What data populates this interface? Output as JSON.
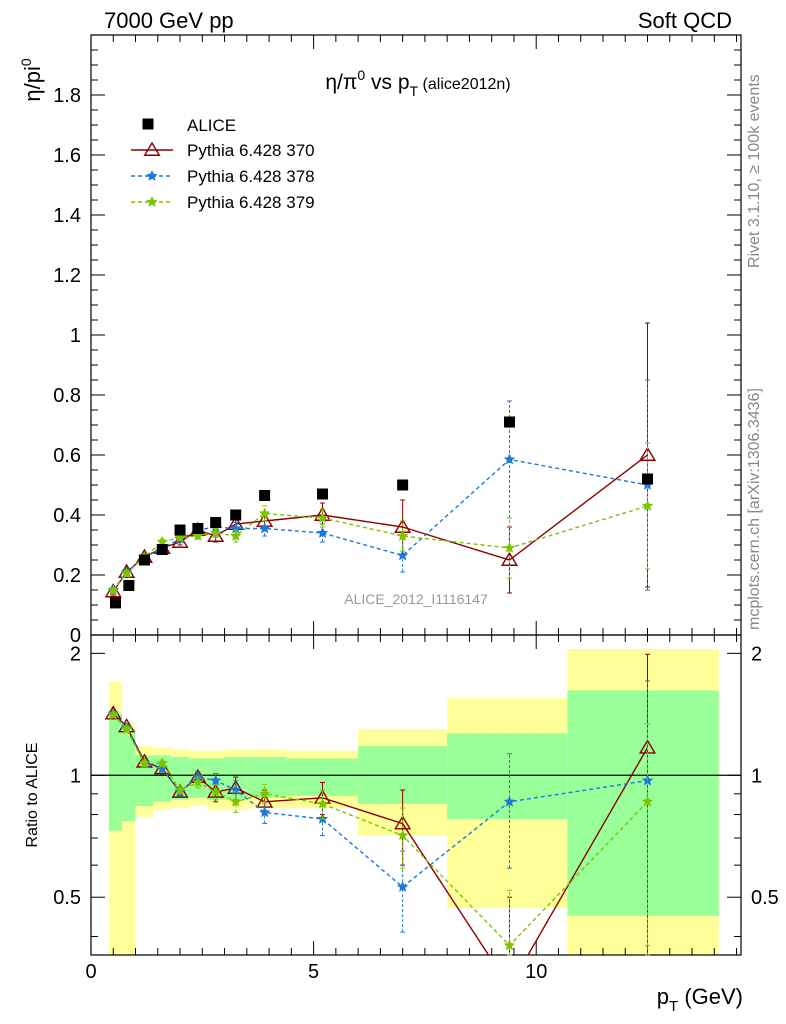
{
  "header": {
    "left": "7000 GeV pp",
    "right": "Soft QCD",
    "side_top": "Rivet 3.1.10, ≥ 100k events",
    "side_bottom": "mcplots.cern.ch [arXiv:1306.3436]",
    "watermark": "ALICE_2012_I1116147"
  },
  "chart_data": [
    {
      "type": "line",
      "title": "η/π⁰ vs p_T (alice2012n)",
      "title_main": "η/π",
      "title_sup": "0",
      "title_mid": " vs p",
      "title_sub": "T",
      "title_tag": "(alice2012n)",
      "ylabel_main": "η/pi",
      "ylabel_sup": "0",
      "xlim": [
        0,
        14.6
      ],
      "ylim": [
        0,
        2.0
      ],
      "yticks": [
        0,
        0.2,
        0.4,
        0.6,
        0.8,
        1,
        1.2,
        1.4,
        1.6,
        1.8
      ],
      "ytick_labels": [
        "0",
        "0.2",
        "0.4",
        "0.6",
        "0.8",
        "1",
        "1.2",
        "1.4",
        "1.6",
        "1.8"
      ],
      "legend_position": "top-left",
      "data": {
        "name": "ALICE",
        "color": "#000000",
        "x": [
          0.55,
          0.85,
          1.2,
          1.6,
          2.0,
          2.4,
          2.8,
          3.25,
          3.9,
          5.2,
          7.0,
          9.4,
          12.5
        ],
        "y": [
          0.107,
          0.165,
          0.25,
          0.285,
          0.35,
          0.355,
          0.375,
          0.4,
          0.465,
          0.47,
          0.5,
          0.71,
          0.52
        ]
      },
      "series": [
        {
          "name": "Pythia 6.428 370",
          "color": "#8b0000",
          "marker": "triangle",
          "dash": "solid",
          "x": [
            0.5,
            0.8,
            1.2,
            1.6,
            2.0,
            2.4,
            2.8,
            3.25,
            3.9,
            5.2,
            7.0,
            9.4,
            12.5
          ],
          "y": [
            0.145,
            0.21,
            0.26,
            0.29,
            0.31,
            0.35,
            0.33,
            0.37,
            0.38,
            0.4,
            0.36,
            0.25,
            0.6
          ],
          "err": [
            0.012,
            0.012,
            0.01,
            0.01,
            0.01,
            0.012,
            0.02,
            0.02,
            0.03,
            0.04,
            0.09,
            0.11,
            0.44
          ]
        },
        {
          "name": "Pythia 6.428 378",
          "color": "#1e78d8",
          "marker": "star",
          "dash": "dashed",
          "x": [
            0.5,
            0.8,
            1.2,
            1.6,
            2.0,
            2.4,
            2.8,
            3.25,
            3.9,
            5.2,
            7.0,
            9.4,
            12.5
          ],
          "y": [
            0.15,
            0.21,
            0.26,
            0.29,
            0.32,
            0.35,
            0.36,
            0.355,
            0.355,
            0.34,
            0.265,
            0.585,
            0.5
          ],
          "err": [
            0.01,
            0.01,
            0.01,
            0.01,
            0.01,
            0.01,
            0.015,
            0.02,
            0.025,
            0.03,
            0.055,
            0.195,
            0.35
          ]
        },
        {
          "name": "Pythia 6.428 379",
          "color": "#7cc400",
          "marker": "star",
          "dash": "dashed",
          "x": [
            0.5,
            0.8,
            1.2,
            1.6,
            2.0,
            2.4,
            2.8,
            3.25,
            3.9,
            5.2,
            7.0,
            9.4,
            12.5
          ],
          "y": [
            0.148,
            0.205,
            0.26,
            0.31,
            0.325,
            0.33,
            0.34,
            0.33,
            0.405,
            0.39,
            0.33,
            0.29,
            0.43
          ],
          "err": [
            0.01,
            0.01,
            0.01,
            0.01,
            0.01,
            0.01,
            0.015,
            0.02,
            0.025,
            0.03,
            0.05,
            0.1,
            0.21
          ]
        }
      ]
    },
    {
      "type": "line",
      "ylabel": "Ratio to ALICE",
      "xlabel_main": "p",
      "xlabel_sub": "T",
      "xlabel_unit": "(GeV)",
      "xlim": [
        0,
        14.6
      ],
      "ylim": [
        0.36,
        2.22
      ],
      "xticks": [
        0,
        5,
        10
      ],
      "xtick_labels": [
        "0",
        "5",
        "10"
      ],
      "yticks": [
        0.5,
        1,
        2
      ],
      "ytick_labels": [
        "0.5",
        "1",
        "2"
      ],
      "bands": [
        {
          "x0": 0.4,
          "x1": 0.7,
          "green": [
            0.73,
            1.42
          ],
          "yellow": [
            0.36,
            1.7
          ]
        },
        {
          "x0": 0.7,
          "x1": 1.0,
          "green": [
            0.77,
            1.3
          ],
          "yellow": [
            0.36,
            1.35
          ]
        },
        {
          "x0": 1.0,
          "x1": 1.4,
          "green": [
            0.84,
            1.12
          ],
          "yellow": [
            0.79,
            1.18
          ]
        },
        {
          "x0": 1.4,
          "x1": 1.8,
          "green": [
            0.86,
            1.12
          ],
          "yellow": [
            0.82,
            1.17
          ]
        },
        {
          "x0": 1.8,
          "x1": 2.2,
          "green": [
            0.87,
            1.11
          ],
          "yellow": [
            0.83,
            1.16
          ]
        },
        {
          "x0": 2.2,
          "x1": 2.6,
          "green": [
            0.88,
            1.1
          ],
          "yellow": [
            0.84,
            1.15
          ]
        },
        {
          "x0": 2.6,
          "x1": 3.0,
          "green": [
            0.87,
            1.1
          ],
          "yellow": [
            0.82,
            1.15
          ]
        },
        {
          "x0": 3.0,
          "x1": 3.5,
          "green": [
            0.87,
            1.11
          ],
          "yellow": [
            0.82,
            1.16
          ]
        },
        {
          "x0": 3.5,
          "x1": 4.4,
          "green": [
            0.88,
            1.11
          ],
          "yellow": [
            0.83,
            1.16
          ]
        },
        {
          "x0": 4.4,
          "x1": 6.0,
          "green": [
            0.89,
            1.1
          ],
          "yellow": [
            0.83,
            1.15
          ]
        },
        {
          "x0": 6.0,
          "x1": 8.0,
          "green": [
            0.85,
            1.18
          ],
          "yellow": [
            0.71,
            1.3
          ]
        },
        {
          "x0": 8.0,
          "x1": 10.7,
          "green": [
            0.78,
            1.27
          ],
          "yellow": [
            0.47,
            1.55
          ]
        },
        {
          "x0": 10.7,
          "x1": 14.1,
          "green": [
            0.45,
            1.62
          ],
          "yellow": [
            0.36,
            2.05
          ]
        }
      ],
      "series": [
        {
          "name": "Pythia 6.428 370",
          "color": "#8b0000",
          "marker": "triangle",
          "dash": "solid",
          "x": [
            0.5,
            0.8,
            1.2,
            1.6,
            2.0,
            2.4,
            2.8,
            3.25,
            3.9,
            5.2,
            7.0,
            9.4,
            12.5
          ],
          "y": [
            1.42,
            1.32,
            1.08,
            1.04,
            0.91,
            0.99,
            0.91,
            0.93,
            0.86,
            0.88,
            0.76,
            0.3,
            1.17
          ],
          "err": [
            0.02,
            0.02,
            0.02,
            0.02,
            0.02,
            0.03,
            0.05,
            0.06,
            0.06,
            0.08,
            0.16,
            0.2,
            0.82
          ]
        },
        {
          "name": "Pythia 6.428 378",
          "color": "#1e78d8",
          "marker": "star",
          "dash": "dashed",
          "x": [
            0.5,
            0.8,
            1.2,
            1.6,
            2.0,
            2.4,
            2.8,
            3.25,
            3.9,
            5.2,
            7.0,
            9.4,
            12.5
          ],
          "y": [
            1.42,
            1.31,
            1.07,
            1.04,
            0.91,
            0.99,
            0.97,
            0.92,
            0.81,
            0.78,
            0.53,
            0.86,
            0.97
          ],
          "err": [
            0.02,
            0.02,
            0.02,
            0.02,
            0.02,
            0.03,
            0.04,
            0.05,
            0.05,
            0.07,
            0.12,
            0.27,
            0.74
          ]
        },
        {
          "name": "Pythia 6.428 379",
          "color": "#7cc400",
          "marker": "star",
          "dash": "dashed",
          "x": [
            0.5,
            0.8,
            1.2,
            1.6,
            2.0,
            2.4,
            2.8,
            3.25,
            3.9,
            5.2,
            7.0,
            9.4,
            12.5
          ],
          "y": [
            1.41,
            1.3,
            1.07,
            1.07,
            0.92,
            0.96,
            0.91,
            0.86,
            0.9,
            0.85,
            0.71,
            0.38,
            0.86
          ],
          "err": [
            0.02,
            0.02,
            0.02,
            0.02,
            0.02,
            0.03,
            0.04,
            0.05,
            0.05,
            0.07,
            0.12,
            0.14,
            0.48
          ]
        }
      ]
    }
  ]
}
